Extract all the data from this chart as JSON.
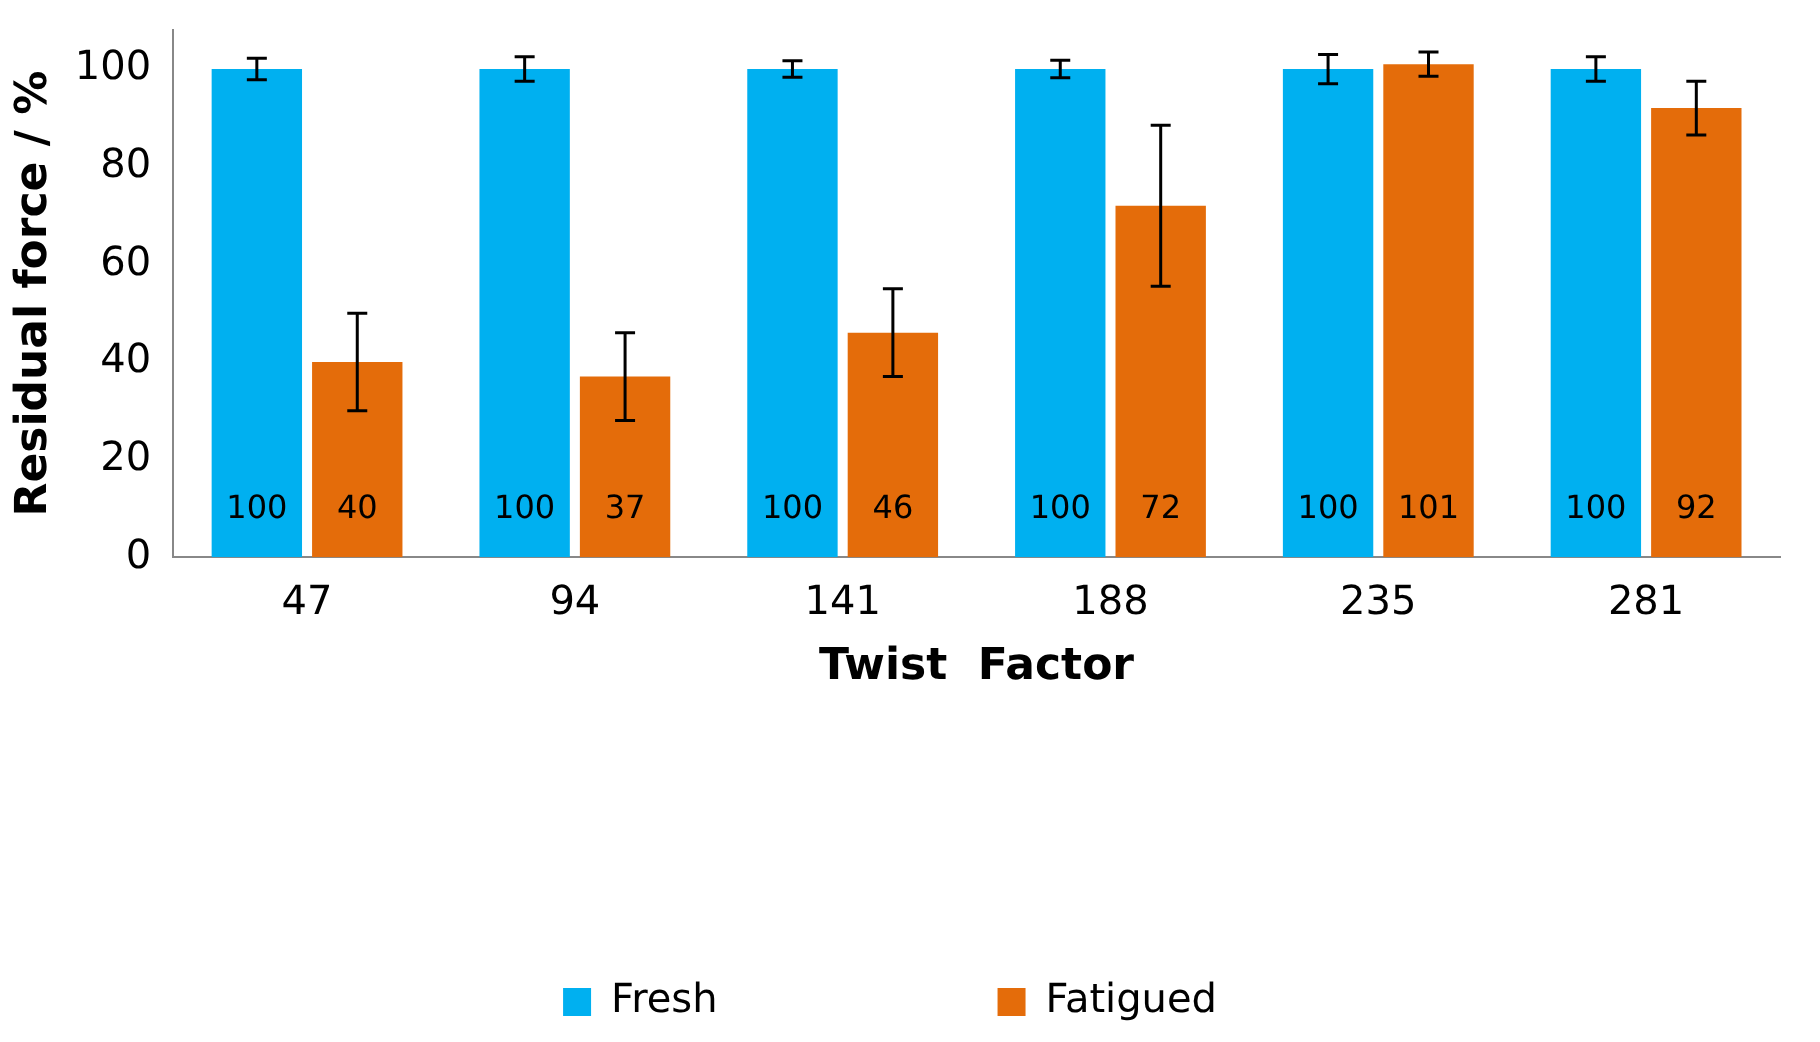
{
  "chart_data": {
    "type": "bar",
    "xlabel": "Twist  Factor",
    "ylabel": "Residual force / %",
    "categories": [
      "47",
      "94",
      "141",
      "188",
      "235",
      "281"
    ],
    "series": [
      {
        "name": "Fresh",
        "color": "#00b0f0",
        "values": [
          100,
          100,
          100,
          100,
          100,
          100
        ],
        "errors": [
          2.2,
          2.5,
          1.7,
          1.8,
          3,
          2.5
        ]
      },
      {
        "name": "Fatigued",
        "color": "#e46c0a",
        "values": [
          40,
          37,
          46,
          72,
          101,
          92
        ],
        "errors": [
          10,
          9,
          9,
          16.5,
          2.5,
          5.5
        ]
      }
    ],
    "ylim": [
      0,
      108
    ],
    "yticks": [
      0,
      20,
      40,
      60,
      80,
      100
    ],
    "grid": false,
    "legend": "bottom",
    "data_labels": true
  }
}
